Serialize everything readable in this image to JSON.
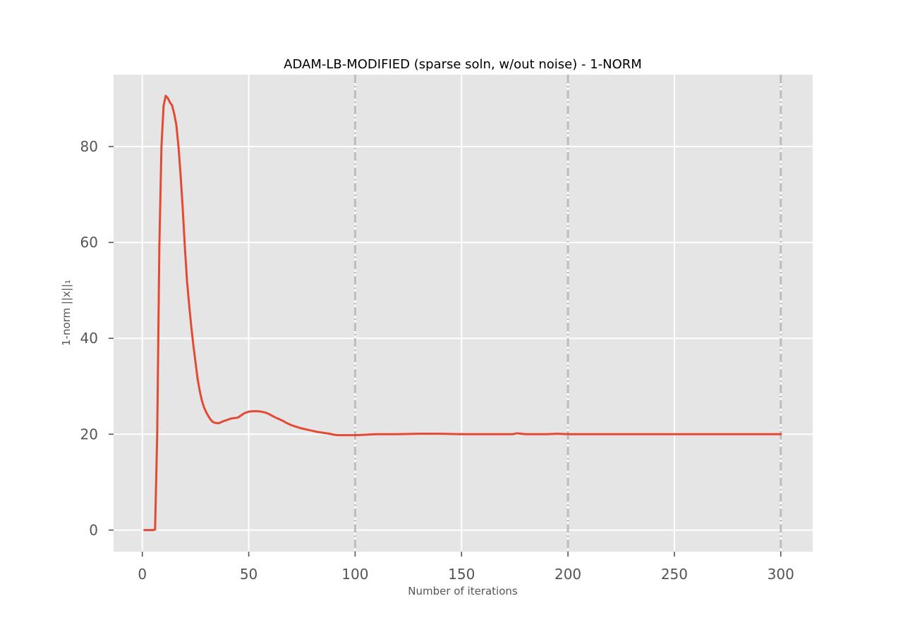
{
  "chart_data": {
    "type": "line",
    "title": "ADAM-LB-MODIFIED (sparse soln, w/out noise) - 1-NORM",
    "xlabel": "Number of iterations",
    "ylabel": "1-norm ||x||₁",
    "xlim": [
      -13.5,
      315
    ],
    "ylim": [
      -4.5,
      95
    ],
    "xticks": [
      0,
      50,
      100,
      150,
      200,
      250,
      300
    ],
    "yticks": [
      0,
      20,
      40,
      60,
      80
    ],
    "grid": true,
    "legend": "none",
    "vlines": [
      100,
      200,
      300
    ],
    "colors": {
      "line": "#E24A33",
      "background": "#E5E5E5",
      "grid": "#FFFFFF",
      "vline": "#BDBDBD"
    },
    "series": [
      {
        "x": [
          1,
          2,
          3,
          4,
          5,
          6,
          7,
          8,
          9,
          10,
          11,
          12,
          13,
          14,
          15,
          16,
          17,
          18,
          19,
          20,
          21,
          22,
          23,
          24,
          25,
          26,
          27,
          28,
          29,
          30,
          31,
          32,
          33,
          34,
          35,
          36,
          37,
          38,
          40,
          42,
          44,
          45,
          46,
          48,
          50,
          52,
          54,
          56,
          58,
          60,
          62,
          64,
          66,
          68,
          70,
          72,
          75,
          78,
          80,
          82,
          85,
          88,
          90,
          92,
          95,
          98,
          100,
          105,
          110,
          115,
          120,
          130,
          140,
          150,
          160,
          170,
          174,
          176,
          178,
          180,
          185,
          190,
          195,
          200,
          205,
          210,
          220,
          230,
          250,
          270,
          290,
          300
        ],
        "y": [
          0,
          0,
          0,
          0,
          0,
          0.1,
          20,
          59,
          80,
          88.5,
          90.6,
          90.1,
          89.2,
          88.6,
          86.8,
          84.5,
          80,
          74,
          67,
          59,
          52,
          47,
          42.5,
          38.5,
          35,
          31.5,
          29,
          27,
          25.6,
          24.6,
          23.8,
          23.1,
          22.6,
          22.4,
          22.3,
          22.3,
          22.5,
          22.7,
          23,
          23.3,
          23.4,
          23.5,
          23.8,
          24.4,
          24.7,
          24.8,
          24.8,
          24.7,
          24.5,
          24.1,
          23.6,
          23.2,
          22.8,
          22.3,
          21.9,
          21.6,
          21.2,
          20.9,
          20.7,
          20.5,
          20.3,
          20.1,
          19.9,
          19.8,
          19.8,
          19.8,
          19.8,
          19.9,
          20,
          20,
          20,
          20.1,
          20.1,
          20,
          20,
          20,
          20,
          20.2,
          20.1,
          20,
          20,
          20,
          20.1,
          20,
          20,
          20,
          20,
          20,
          20,
          20,
          20,
          20
        ]
      }
    ]
  }
}
